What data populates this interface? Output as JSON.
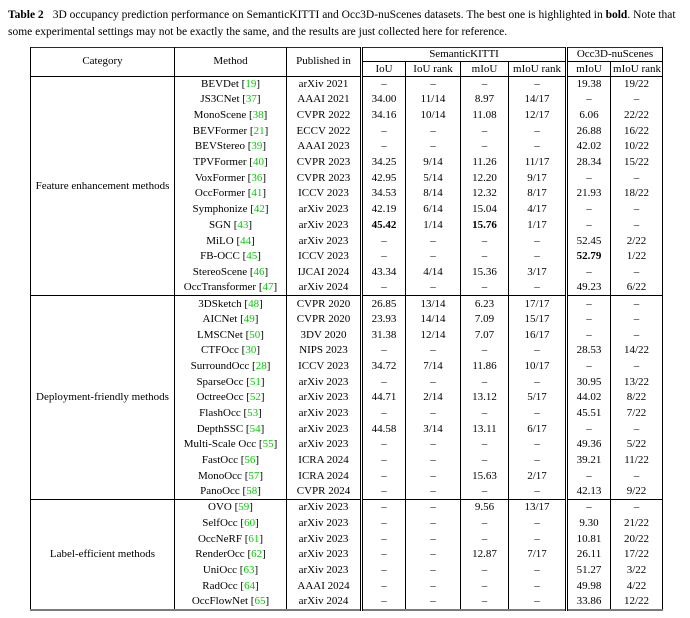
{
  "caption": {
    "label": "Table 2",
    "text_before_bold": "3D occupancy prediction performance on SemanticKITTI and Occ3D-nuScenes datasets. The best one is highlighted in ",
    "bold_word": "bold",
    "text_after_bold": ". Note that some experimental settings may not be exactly the same, and the results are just collected here for reference."
  },
  "table": {
    "citation_color": "#00cc00",
    "columns": {
      "category": "Category",
      "method": "Method",
      "published_in": "Published in"
    },
    "groups": [
      {
        "label": "SemanticKITTI",
        "sub": [
          "IoU",
          "IoU rank",
          "mIoU",
          "mIoU rank"
        ]
      },
      {
        "label": "Occ3D-nuScenes",
        "sub": [
          "mIoU",
          "mIoU rank"
        ]
      }
    ],
    "sections": [
      {
        "category": "Feature enhancement methods",
        "rows": [
          {
            "method": "BEVDet",
            "cite": "19",
            "venue": "arXiv 2021",
            "values": [
              "–",
              "–",
              "–",
              "–",
              "19.38",
              "19/22"
            ],
            "bold": []
          },
          {
            "method": "JS3CNet",
            "cite": "37",
            "venue": "AAAI 2021",
            "values": [
              "34.00",
              "11/14",
              "8.97",
              "14/17",
              "–",
              "–"
            ],
            "bold": []
          },
          {
            "method": "MonoScene",
            "cite": "38",
            "venue": "CVPR 2022",
            "values": [
              "34.16",
              "10/14",
              "11.08",
              "12/17",
              "6.06",
              "22/22"
            ],
            "bold": []
          },
          {
            "method": "BEVFormer",
            "cite": "21",
            "venue": "ECCV 2022",
            "values": [
              "–",
              "–",
              "–",
              "–",
              "26.88",
              "16/22"
            ],
            "bold": []
          },
          {
            "method": "BEVStereo",
            "cite": "39",
            "venue": "AAAI 2023",
            "values": [
              "–",
              "–",
              "–",
              "–",
              "42.02",
              "10/22"
            ],
            "bold": []
          },
          {
            "method": "TPVFormer",
            "cite": "40",
            "venue": "CVPR 2023",
            "values": [
              "34.25",
              "9/14",
              "11.26",
              "11/17",
              "28.34",
              "15/22"
            ],
            "bold": []
          },
          {
            "method": "VoxFormer",
            "cite": "36",
            "venue": "CVPR 2023",
            "values": [
              "42.95",
              "5/14",
              "12.20",
              "9/17",
              "–",
              "–"
            ],
            "bold": []
          },
          {
            "method": "OccFormer",
            "cite": "41",
            "venue": "ICCV 2023",
            "values": [
              "34.53",
              "8/14",
              "12.32",
              "8/17",
              "21.93",
              "18/22"
            ],
            "bold": []
          },
          {
            "method": "Symphonize",
            "cite": "42",
            "venue": "arXiv 2023",
            "values": [
              "42.19",
              "6/14",
              "15.04",
              "4/17",
              "–",
              "–"
            ],
            "bold": []
          },
          {
            "method": "SGN",
            "cite": "43",
            "venue": "arXiv 2023",
            "values": [
              "45.42",
              "1/14",
              "15.76",
              "1/17",
              "–",
              "–"
            ],
            "bold": [
              0,
              2
            ]
          },
          {
            "method": "MiLO",
            "cite": "44",
            "venue": "arXiv 2023",
            "values": [
              "–",
              "–",
              "–",
              "–",
              "52.45",
              "2/22"
            ],
            "bold": []
          },
          {
            "method": "FB-OCC",
            "cite": "45",
            "venue": "ICCV 2023",
            "values": [
              "–",
              "–",
              "–",
              "–",
              "52.79",
              "1/22"
            ],
            "bold": [
              4
            ]
          },
          {
            "method": "StereoScene",
            "cite": "46",
            "venue": "IJCAI 2024",
            "values": [
              "43.34",
              "4/14",
              "15.36",
              "3/17",
              "–",
              "–"
            ],
            "bold": []
          },
          {
            "method": "OccTransformer",
            "cite": "47",
            "venue": "arXiv 2024",
            "values": [
              "–",
              "–",
              "–",
              "–",
              "49.23",
              "6/22"
            ],
            "bold": []
          }
        ]
      },
      {
        "category": "Deployment-friendly methods",
        "rows": [
          {
            "method": "3DSketch",
            "cite": "48",
            "venue": "CVPR 2020",
            "values": [
              "26.85",
              "13/14",
              "6.23",
              "17/17",
              "–",
              "–"
            ],
            "bold": []
          },
          {
            "method": "AICNet",
            "cite": "49",
            "venue": "CVPR 2020",
            "values": [
              "23.93",
              "14/14",
              "7.09",
              "15/17",
              "–",
              "–"
            ],
            "bold": []
          },
          {
            "method": "LMSCNet",
            "cite": "50",
            "venue": "3DV 2020",
            "values": [
              "31.38",
              "12/14",
              "7.07",
              "16/17",
              "–",
              "–"
            ],
            "bold": []
          },
          {
            "method": "CTFOcc",
            "cite": "30",
            "venue": "NIPS 2023",
            "values": [
              "–",
              "–",
              "–",
              "–",
              "28.53",
              "14/22"
            ],
            "bold": []
          },
          {
            "method": "SurroundOcc",
            "cite": "28",
            "venue": "ICCV 2023",
            "values": [
              "34.72",
              "7/14",
              "11.86",
              "10/17",
              "–",
              "–"
            ],
            "bold": []
          },
          {
            "method": "SparseOcc",
            "cite": "51",
            "venue": "arXiv 2023",
            "values": [
              "–",
              "–",
              "–",
              "–",
              "30.95",
              "13/22"
            ],
            "bold": []
          },
          {
            "method": "OctreeOcc",
            "cite": "52",
            "venue": "arXiv 2023",
            "values": [
              "44.71",
              "2/14",
              "13.12",
              "5/17",
              "44.02",
              "8/22"
            ],
            "bold": []
          },
          {
            "method": "FlashOcc",
            "cite": "53",
            "venue": "arXiv 2023",
            "values": [
              "–",
              "–",
              "–",
              "–",
              "45.51",
              "7/22"
            ],
            "bold": []
          },
          {
            "method": "DepthSSC",
            "cite": "54",
            "venue": "arXiv 2023",
            "values": [
              "44.58",
              "3/14",
              "13.11",
              "6/17",
              "–",
              "–"
            ],
            "bold": []
          },
          {
            "method": "Multi-Scale Occ",
            "cite": "55",
            "venue": "arXiv 2023",
            "values": [
              "–",
              "–",
              "–",
              "–",
              "49.36",
              "5/22"
            ],
            "bold": []
          },
          {
            "method": "FastOcc",
            "cite": "56",
            "venue": "ICRA 2024",
            "values": [
              "–",
              "–",
              "–",
              "–",
              "39.21",
              "11/22"
            ],
            "bold": []
          },
          {
            "method": "MonoOcc",
            "cite": "57",
            "venue": "ICRA 2024",
            "values": [
              "–",
              "–",
              "15.63",
              "2/17",
              "–",
              "–"
            ],
            "bold": []
          },
          {
            "method": "PanoOcc",
            "cite": "58",
            "venue": "CVPR 2024",
            "values": [
              "–",
              "–",
              "–",
              "–",
              "42.13",
              "9/22"
            ],
            "bold": []
          }
        ]
      },
      {
        "category": "Label-efficient methods",
        "rows": [
          {
            "method": "OVO",
            "cite": "59",
            "venue": "arXiv 2023",
            "values": [
              "–",
              "–",
              "9.56",
              "13/17",
              "–",
              "–"
            ],
            "bold": []
          },
          {
            "method": "SelfOcc",
            "cite": "60",
            "venue": "arXiv 2023",
            "values": [
              "–",
              "–",
              "–",
              "–",
              "9.30",
              "21/22"
            ],
            "bold": []
          },
          {
            "method": "OccNeRF",
            "cite": "61",
            "venue": "arXiv 2023",
            "values": [
              "–",
              "–",
              "–",
              "–",
              "10.81",
              "20/22"
            ],
            "bold": []
          },
          {
            "method": "RenderOcc",
            "cite": "62",
            "venue": "arXiv 2023",
            "values": [
              "–",
              "–",
              "12.87",
              "7/17",
              "26.11",
              "17/22"
            ],
            "bold": []
          },
          {
            "method": "UniOcc",
            "cite": "63",
            "venue": "arXiv 2023",
            "values": [
              "–",
              "–",
              "–",
              "–",
              "51.27",
              "3/22"
            ],
            "bold": []
          },
          {
            "method": "RadOcc",
            "cite": "64",
            "venue": "AAAI 2024",
            "values": [
              "–",
              "–",
              "–",
              "–",
              "49.98",
              "4/22"
            ],
            "bold": []
          },
          {
            "method": "OccFlowNet",
            "cite": "65",
            "venue": "arXiv 2024",
            "values": [
              "–",
              "–",
              "–",
              "–",
              "33.86",
              "12/22"
            ],
            "bold": []
          }
        ]
      }
    ]
  }
}
